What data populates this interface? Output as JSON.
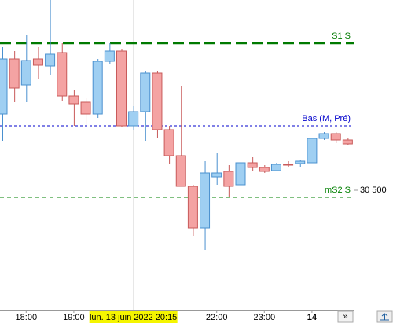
{
  "chart_data": {
    "type": "candlestick",
    "categories": [
      null,
      null,
      "18:00",
      null,
      null,
      null,
      "19:00",
      null,
      null,
      null,
      null,
      null,
      null,
      null,
      null,
      null,
      null,
      null,
      "22:00",
      null,
      null,
      null,
      "23:00",
      null,
      null,
      null,
      "14",
      null,
      null,
      null
    ],
    "open": [
      30694,
      30834,
      30768,
      30834,
      30816,
      30850,
      30740,
      30724,
      30694,
      30828,
      30854,
      30664,
      30700,
      30798,
      30654,
      30588,
      30510,
      30404,
      30534,
      30548,
      30514,
      30570,
      30558,
      30550,
      30566,
      30568,
      30570,
      30632,
      30644,
      30628
    ],
    "high": [
      30864,
      30854,
      30894,
      30864,
      30984,
      30874,
      30754,
      30734,
      30834,
      30874,
      30860,
      30714,
      30804,
      30804,
      30664,
      30764,
      30514,
      30574,
      30594,
      30564,
      30584,
      30584,
      30564,
      30570,
      30574,
      30578,
      30634,
      30648,
      30648,
      30634
    ],
    "low": [
      30624,
      30724,
      30724,
      30784,
      30794,
      30728,
      30664,
      30664,
      30684,
      30820,
      30660,
      30654,
      30624,
      30634,
      30568,
      30510,
      30384,
      30348,
      30514,
      30484,
      30510,
      30548,
      30544,
      30550,
      30560,
      30560,
      30570,
      30628,
      30620,
      30614
    ],
    "close": [
      30834,
      30760,
      30830,
      30818,
      30846,
      30740,
      30720,
      30694,
      30828,
      30854,
      30664,
      30700,
      30798,
      30654,
      30588,
      30510,
      30404,
      30544,
      30544,
      30510,
      30570,
      30558,
      30548,
      30566,
      30564,
      30574,
      30632,
      30644,
      30628,
      30618
    ],
    "up_color": "#9fcff2",
    "down_color": "#f4a3a3",
    "ylim": [
      30194,
      30984
    ],
    "yticks": [
      {
        "value": 30500,
        "label": "30 500"
      }
    ],
    "levels": [
      {
        "name": "S1 S",
        "value": 30874,
        "color": "#007a00",
        "style": "long-dash"
      },
      {
        "name": "Bas (M, Pré)",
        "value": 30664,
        "color": "#0000cc",
        "style": "dot"
      },
      {
        "name": "mS2 S",
        "value": 30482,
        "color": "#008000",
        "style": "dash"
      }
    ],
    "crosshair": {
      "index": 11,
      "label": "lun. 13 juin 2022 20:15"
    },
    "nav_button": "»"
  }
}
